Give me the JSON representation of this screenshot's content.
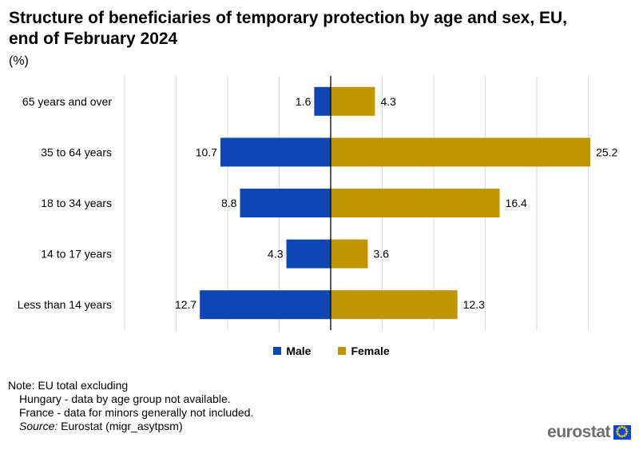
{
  "header": {
    "title": "Structure of beneficiaries of temporary protection by age and sex, EU, end of February 2024",
    "subtitle": "(%)"
  },
  "chart_data": {
    "type": "bar",
    "orientation": "horizontal-diverging",
    "categories": [
      "65 years and over",
      "35 to 64 years",
      "18 to 34 years",
      "14 to 17 years",
      "Less than 14 years"
    ],
    "series": [
      {
        "name": "Male",
        "values": [
          1.6,
          10.7,
          8.8,
          4.3,
          12.7
        ],
        "color": "#0e47b3",
        "side": "left"
      },
      {
        "name": "Female",
        "values": [
          4.3,
          25.2,
          16.4,
          3.6,
          12.3
        ],
        "color": "#bf9600",
        "side": "right"
      }
    ],
    "xlim": [
      -20,
      25
    ],
    "grid": true,
    "legend_position": "bottom"
  },
  "legend": {
    "male_label": "Male",
    "female_label": "Female"
  },
  "notes": {
    "line1": "Note: EU total excluding",
    "line2": "Hungary - data by age group not available.",
    "line3": "France - data for minors generally not included.",
    "source_label": "Source:",
    "source_text": " Eurostat (migr_asytpsm)"
  },
  "logo": {
    "text": "eurostat",
    "icon": "eu-flag-icon"
  }
}
